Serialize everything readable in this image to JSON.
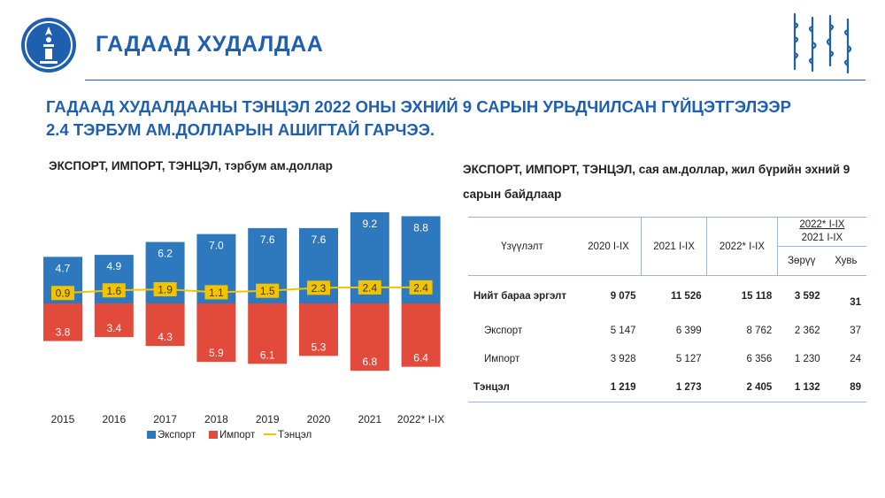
{
  "header": {
    "page_title": "ГАДААД ХУДАЛДАА",
    "headline_line1": "ГАДААД ХУДАЛДААНЫ ТЭНЦЭЛ 2022 ОНЫ ЭХНИЙ 9 САРЫН УРЬДЧИЛСАН ГҮЙЦЭТГЭЛЭЭР",
    "headline_line2": "2.4 ТЭРБУМ АМ.ДОЛЛАРЫН АШИГТАЙ ГАРЧЭЭ."
  },
  "colors": {
    "brand": "#1f5fb0",
    "export": "#2e78bd",
    "import": "#e24a3b",
    "balance": "#f2c400"
  },
  "chart_data": {
    "type": "bar",
    "title": "ЭКСПОРТ, ИМПОРТ, ТЭНЦЭЛ, тэрбум ам.доллар",
    "categories": [
      "2015",
      "2016",
      "2017",
      "2018",
      "2019",
      "2020",
      "2021",
      "2022* I-IX"
    ],
    "series": [
      {
        "name": "Экспорт",
        "kind": "bar",
        "values": [
          4.7,
          4.9,
          6.2,
          7.0,
          7.6,
          7.6,
          9.2,
          8.8
        ],
        "color": "#2e78bd"
      },
      {
        "name": "Импорт",
        "kind": "bar",
        "values": [
          3.8,
          3.4,
          4.3,
          5.9,
          6.1,
          5.3,
          6.8,
          6.4
        ],
        "color": "#e24a3b"
      },
      {
        "name": "Тэнцэл",
        "kind": "line",
        "values": [
          0.9,
          1.6,
          1.9,
          1.1,
          1.5,
          2.3,
          2.4,
          2.4
        ],
        "color": "#f2c400"
      }
    ],
    "stacking": "exports above zero line, imports below",
    "grid": false,
    "legend_position": "bottom"
  },
  "table": {
    "title": "ЭКСПОРТ, ИМПОРТ, ТЭНЦЭЛ, сая ам.доллар, жил бүрийн эхний 9 сарын байдлаар",
    "header": {
      "indicator": "Үзүүлэлт",
      "col_2020": "2020 I-IX",
      "col_2021": "2021 I-IX",
      "col_2022": "2022* I-IX",
      "group_top": "2022* I-IX",
      "group_bottom": "2021 I-IX",
      "diff": "Зөрүү",
      "share": "Хувь"
    },
    "rows": [
      {
        "label": "Нийт бараа эргэлт",
        "v2020": "9 075",
        "v2021": "11 526",
        "v2022": "15 118",
        "diff": "3 592",
        "share": "31"
      },
      {
        "label": "Экспорт",
        "v2020": "5 147",
        "v2021": "6 399",
        "v2022": "8 762",
        "diff": "2 362",
        "share": "37"
      },
      {
        "label": "Импорт",
        "v2020": "3 928",
        "v2021": "5 127",
        "v2022": "6 356",
        "diff": "1 230",
        "share": "24"
      },
      {
        "label": "Тэнцэл",
        "v2020": "1 219",
        "v2021": "1 273",
        "v2022": "2 405",
        "diff": "1 132",
        "share": "89"
      }
    ]
  }
}
